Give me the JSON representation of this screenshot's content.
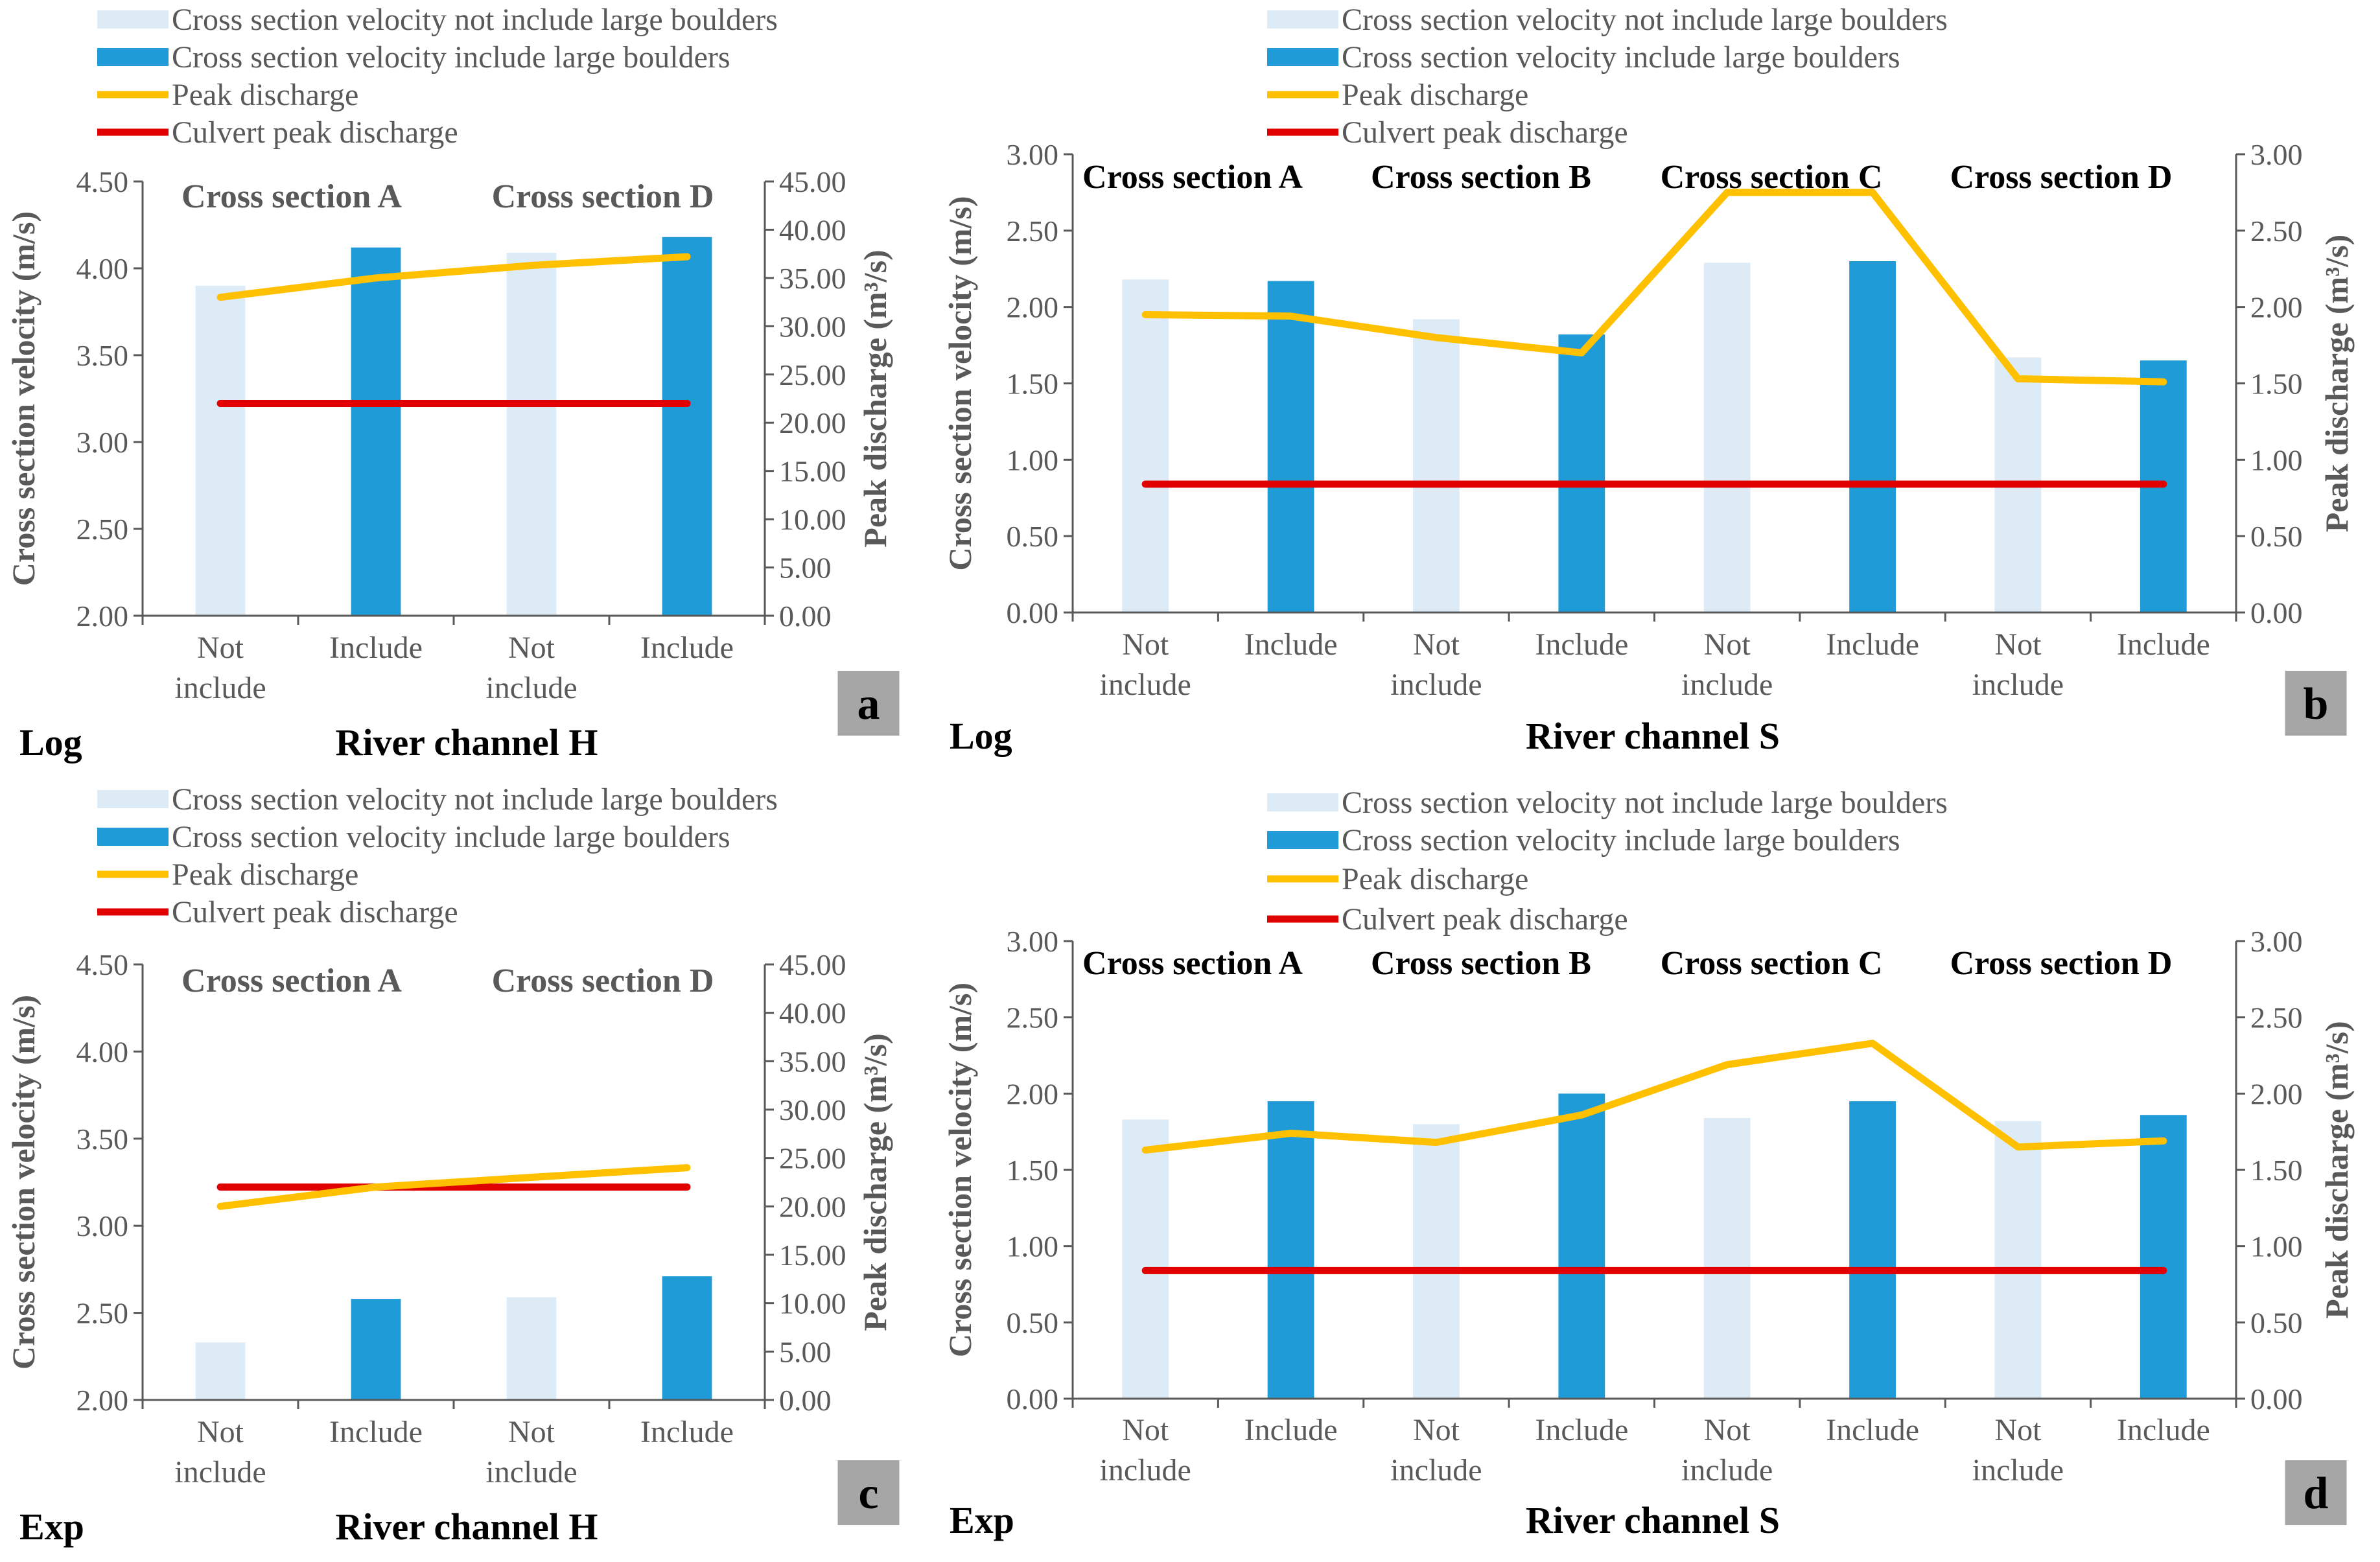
{
  "colors": {
    "bar_not_include": "#ddebf7",
    "bar_include": "#1f9bd7",
    "peak_line": "#ffc000",
    "culvert_line": "#e00000",
    "axis": "#595959",
    "badge": "#a6a6a6"
  },
  "chart_data": [
    {
      "panel": "a",
      "type": "bar",
      "method_label": "Log",
      "xlabel": "River channel H",
      "ylabel_left": "Cross section velocity (m/s)",
      "ylabel_right": "Peak discharge (m³/s)",
      "legend": [
        "Cross section velocity not include large boulders",
        "Cross section velocity include large boulders",
        "Peak discharge",
        "Culvert peak discharge"
      ],
      "sections": [
        "Cross section A",
        "Cross section D"
      ],
      "categories": [
        "Not include",
        "Include",
        "Not include",
        "Include"
      ],
      "ylim_left": [
        2.0,
        4.5
      ],
      "ytick_labels_left": [
        "2.00",
        "2.50",
        "3.00",
        "3.50",
        "4.00",
        "4.50"
      ],
      "ylim_right": [
        0,
        45
      ],
      "ytick_labels_right": [
        "0.00",
        "5.00",
        "10.00",
        "15.00",
        "20.00",
        "25.00",
        "30.00",
        "35.00",
        "40.00",
        "45.00"
      ],
      "velocity_values": [
        3.9,
        4.12,
        4.09,
        4.18
      ],
      "peak_discharge": [
        33.0,
        35.0,
        36.3,
        37.2
      ],
      "culvert_peak_discharge": 22.0
    },
    {
      "panel": "b",
      "type": "bar",
      "method_label": "Log",
      "xlabel": "River channel S",
      "ylabel_left": "Cross section velocity (m/s)",
      "ylabel_right": "Peak discharge (m³/s)",
      "legend": [
        "Cross section velocity not include large boulders",
        "Cross section velocity include large boulders",
        "Peak discharge",
        "Culvert peak discharge"
      ],
      "sections": [
        "Cross section A",
        "Cross section B",
        "Cross section C",
        "Cross section D"
      ],
      "categories": [
        "Not include",
        "Include",
        "Not include",
        "Include",
        "Not include",
        "Include",
        "Not include",
        "Include"
      ],
      "ylim_left": [
        0,
        3.0
      ],
      "ytick_labels_left": [
        "0.00",
        "0.50",
        "1.00",
        "1.50",
        "2.00",
        "2.50",
        "3.00"
      ],
      "ylim_right": [
        0,
        3.0
      ],
      "ytick_labels_right": [
        "0.00",
        "0.50",
        "1.00",
        "1.50",
        "2.00",
        "2.50",
        "3.00"
      ],
      "velocity_values": [
        2.18,
        2.17,
        1.92,
        1.82,
        2.29,
        2.3,
        1.67,
        1.65
      ],
      "peak_discharge": [
        1.95,
        1.94,
        1.8,
        1.7,
        2.75,
        2.75,
        1.53,
        1.51
      ],
      "culvert_peak_discharge": 0.84
    },
    {
      "panel": "c",
      "type": "bar",
      "method_label": "Exp",
      "xlabel": "River channel H",
      "ylabel_left": "Cross section velocity (m/s)",
      "ylabel_right": "Peak discharge (m³/s)",
      "legend": [
        "Cross section velocity not include large boulders",
        "Cross section velocity include large boulders",
        "Peak discharge",
        "Culvert peak discharge"
      ],
      "sections": [
        "Cross section A",
        "Cross section D"
      ],
      "categories": [
        "Not include",
        "Include",
        "Not include",
        "Include"
      ],
      "ylim_left": [
        2.0,
        4.5
      ],
      "ytick_labels_left": [
        "2.00",
        "2.50",
        "3.00",
        "3.50",
        "4.00",
        "4.50"
      ],
      "ylim_right": [
        0,
        45
      ],
      "ytick_labels_right": [
        "0.00",
        "5.00",
        "10.00",
        "15.00",
        "20.00",
        "25.00",
        "30.00",
        "35.00",
        "40.00",
        "45.00"
      ],
      "velocity_values": [
        2.33,
        2.58,
        2.59,
        2.71
      ],
      "peak_discharge": [
        20.0,
        22.0,
        23.0,
        24.0
      ],
      "culvert_peak_discharge": 22.0
    },
    {
      "panel": "d",
      "type": "bar",
      "method_label": "Exp",
      "xlabel": "River channel S",
      "ylabel_left": "Cross section velocity (m/s)",
      "ylabel_right": "Peak discharge (m³/s)",
      "legend": [
        "Cross section velocity not include large boulders",
        "Cross section velocity include large boulders",
        "Peak discharge",
        "Culvert peak discharge"
      ],
      "sections": [
        "Cross section A",
        "Cross section B",
        "Cross section C",
        "Cross section D"
      ],
      "categories": [
        "Not include",
        "Include",
        "Not include",
        "Include",
        "Not include",
        "Include",
        "Not include",
        "Include"
      ],
      "ylim_left": [
        0,
        3.0
      ],
      "ytick_labels_left": [
        "0.00",
        "0.50",
        "1.00",
        "1.50",
        "2.00",
        "2.50",
        "3.00"
      ],
      "ylim_right": [
        0,
        3.0
      ],
      "ytick_labels_right": [
        "0.00",
        "0.50",
        "1.00",
        "1.50",
        "2.00",
        "2.50",
        "3.00"
      ],
      "velocity_values": [
        1.83,
        1.95,
        1.8,
        2.0,
        1.84,
        1.95,
        1.82,
        1.86
      ],
      "peak_discharge": [
        1.63,
        1.74,
        1.68,
        1.86,
        2.19,
        2.33,
        1.65,
        1.69
      ],
      "culvert_peak_discharge": 0.84
    }
  ]
}
